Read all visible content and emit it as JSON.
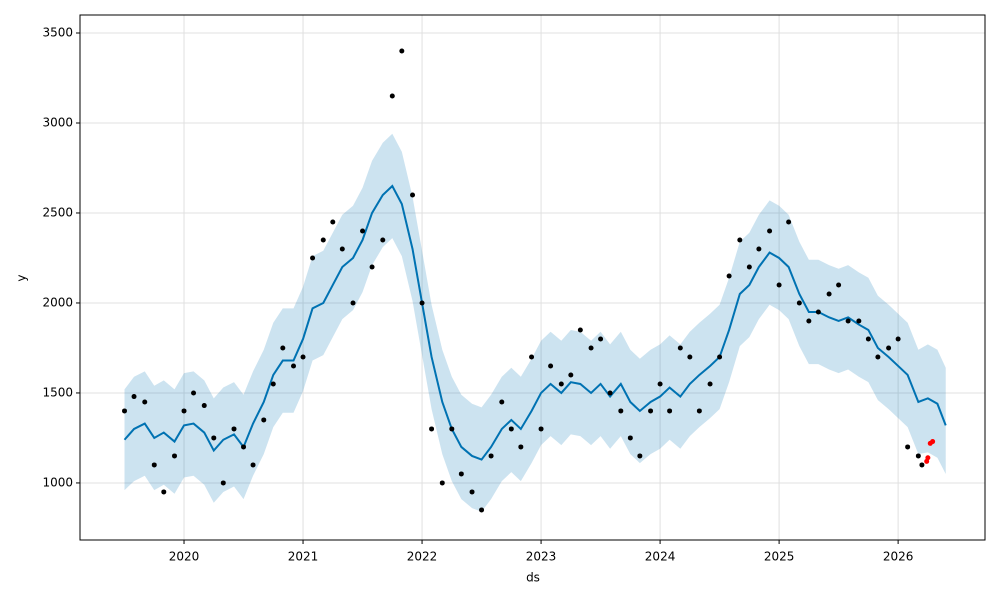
{
  "chart_data": {
    "type": "forecast",
    "x_label": "ds",
    "y_label": "y",
    "xlim": [
      2019.126,
      2026.73
    ],
    "xticks": [
      2020,
      2021,
      2022,
      2023,
      2024,
      2025,
      2026
    ],
    "ylim": [
      683,
      3600
    ],
    "yticks": [
      1000,
      1500,
      2000,
      2500,
      3000,
      3500
    ],
    "grid": true,
    "series": [
      {
        "type": "band",
        "color": "#0072B2",
        "x": [
          2019.5,
          2019.58,
          2019.67,
          2019.75,
          2019.83,
          2019.92,
          2020.0,
          2020.08,
          2020.17,
          2020.25,
          2020.33,
          2020.42,
          2020.5,
          2020.58,
          2020.67,
          2020.75,
          2020.83,
          2020.92,
          2021.0,
          2021.08,
          2021.17,
          2021.25,
          2021.33,
          2021.42,
          2021.5,
          2021.58,
          2021.67,
          2021.75,
          2021.83,
          2021.92,
          2022.0,
          2022.08,
          2022.17,
          2022.25,
          2022.33,
          2022.42,
          2022.5,
          2022.58,
          2022.67,
          2022.75,
          2022.83,
          2022.92,
          2023.0,
          2023.08,
          2023.17,
          2023.25,
          2023.33,
          2023.42,
          2023.5,
          2023.58,
          2023.67,
          2023.75,
          2023.83,
          2023.92,
          2024.0,
          2024.08,
          2024.17,
          2024.25,
          2024.33,
          2024.42,
          2024.5,
          2024.58,
          2024.67,
          2024.75,
          2024.83,
          2024.92,
          2025.0,
          2025.08,
          2025.17,
          2025.25,
          2025.33,
          2025.42,
          2025.5,
          2025.58,
          2025.67,
          2025.75,
          2025.83,
          2025.92,
          2026.0,
          2026.08,
          2026.17,
          2026.25,
          2026.33,
          2026.4
        ],
        "upper": [
          1520,
          1590,
          1620,
          1540,
          1570,
          1520,
          1610,
          1620,
          1570,
          1470,
          1530,
          1560,
          1490,
          1620,
          1740,
          1890,
          1970,
          1970,
          2090,
          2260,
          2290,
          2390,
          2490,
          2540,
          2640,
          2790,
          2890,
          2940,
          2840,
          2590,
          2290,
          1990,
          1740,
          1590,
          1490,
          1440,
          1420,
          1490,
          1590,
          1640,
          1590,
          1690,
          1790,
          1840,
          1790,
          1850,
          1840,
          1790,
          1840,
          1770,
          1840,
          1740,
          1690,
          1740,
          1770,
          1820,
          1770,
          1840,
          1890,
          1940,
          1990,
          2140,
          2340,
          2390,
          2490,
          2570,
          2540,
          2490,
          2340,
          2240,
          2240,
          2210,
          2190,
          2210,
          2170,
          2140,
          2040,
          1990,
          1940,
          1890,
          1740,
          1770,
          1740,
          1640
        ],
        "lower": [
          960,
          1010,
          1040,
          960,
          990,
          940,
          1030,
          1040,
          990,
          890,
          950,
          980,
          910,
          1040,
          1160,
          1310,
          1390,
          1390,
          1510,
          1680,
          1710,
          1810,
          1910,
          1960,
          2060,
          2210,
          2310,
          2360,
          2260,
          2010,
          1710,
          1410,
          1160,
          1010,
          910,
          860,
          840,
          910,
          1010,
          1060,
          1010,
          1110,
          1210,
          1260,
          1210,
          1270,
          1260,
          1210,
          1260,
          1190,
          1260,
          1160,
          1110,
          1160,
          1190,
          1240,
          1190,
          1260,
          1310,
          1360,
          1410,
          1560,
          1760,
          1810,
          1910,
          1990,
          1960,
          1910,
          1760,
          1660,
          1660,
          1630,
          1610,
          1630,
          1590,
          1560,
          1460,
          1410,
          1360,
          1310,
          1160,
          1170,
          1140,
          1050
        ]
      },
      {
        "type": "line",
        "color": "#0072B2",
        "x": [
          2019.5,
          2019.58,
          2019.67,
          2019.75,
          2019.83,
          2019.92,
          2020.0,
          2020.08,
          2020.17,
          2020.25,
          2020.33,
          2020.42,
          2020.5,
          2020.58,
          2020.67,
          2020.75,
          2020.83,
          2020.92,
          2021.0,
          2021.08,
          2021.17,
          2021.25,
          2021.33,
          2021.42,
          2021.5,
          2021.58,
          2021.67,
          2021.75,
          2021.83,
          2021.92,
          2022.0,
          2022.08,
          2022.17,
          2022.25,
          2022.33,
          2022.42,
          2022.5,
          2022.58,
          2022.67,
          2022.75,
          2022.83,
          2022.92,
          2023.0,
          2023.08,
          2023.17,
          2023.25,
          2023.33,
          2023.42,
          2023.5,
          2023.58,
          2023.67,
          2023.75,
          2023.83,
          2023.92,
          2024.0,
          2024.08,
          2024.17,
          2024.25,
          2024.33,
          2024.42,
          2024.5,
          2024.58,
          2024.67,
          2024.75,
          2024.83,
          2024.92,
          2025.0,
          2025.08,
          2025.17,
          2025.25,
          2025.33,
          2025.42,
          2025.5,
          2025.58,
          2025.67,
          2025.75,
          2025.83,
          2025.92,
          2026.0,
          2026.08,
          2026.17,
          2026.25,
          2026.33,
          2026.4
        ],
        "values": [
          1240,
          1300,
          1330,
          1250,
          1280,
          1230,
          1320,
          1330,
          1280,
          1180,
          1240,
          1270,
          1200,
          1330,
          1450,
          1600,
          1680,
          1680,
          1800,
          1970,
          2000,
          2100,
          2200,
          2250,
          2350,
          2500,
          2600,
          2650,
          2550,
          2300,
          2000,
          1700,
          1450,
          1300,
          1200,
          1150,
          1130,
          1200,
          1300,
          1350,
          1300,
          1400,
          1500,
          1550,
          1500,
          1560,
          1550,
          1500,
          1550,
          1480,
          1550,
          1450,
          1400,
          1450,
          1480,
          1530,
          1480,
          1550,
          1600,
          1650,
          1700,
          1850,
          2050,
          2100,
          2200,
          2280,
          2250,
          2200,
          2050,
          1950,
          1950,
          1920,
          1900,
          1920,
          1880,
          1850,
          1750,
          1700,
          1650,
          1600,
          1450,
          1470,
          1440,
          1320
        ]
      },
      {
        "type": "scatter",
        "color": "#000000",
        "x": [
          2019.5,
          2019.58,
          2019.67,
          2019.75,
          2019.83,
          2019.92,
          2020.0,
          2020.08,
          2020.17,
          2020.25,
          2020.33,
          2020.42,
          2020.5,
          2020.58,
          2020.67,
          2020.75,
          2020.83,
          2020.92,
          2021.0,
          2021.08,
          2021.17,
          2021.25,
          2021.33,
          2021.42,
          2021.5,
          2021.58,
          2021.67,
          2021.75,
          2021.83,
          2021.92,
          2022.0,
          2022.08,
          2022.17,
          2022.25,
          2022.33,
          2022.42,
          2022.5,
          2022.58,
          2022.67,
          2022.75,
          2022.83,
          2022.92,
          2023.0,
          2023.08,
          2023.17,
          2023.25,
          2023.33,
          2023.42,
          2023.5,
          2023.58,
          2023.67,
          2023.75,
          2023.83,
          2023.92,
          2024.0,
          2024.08,
          2024.17,
          2024.25,
          2024.33,
          2024.42,
          2024.5,
          2024.58,
          2024.67,
          2024.75,
          2024.83,
          2024.92,
          2025.0,
          2025.08,
          2025.17,
          2025.25,
          2025.33,
          2025.42,
          2025.5,
          2025.58,
          2025.67,
          2025.75,
          2025.83,
          2025.92,
          2026.0,
          2026.08,
          2026.17,
          2026.2
        ],
        "values": [
          1400,
          1480,
          1450,
          1100,
          950,
          1150,
          1400,
          1500,
          1430,
          1250,
          1000,
          1300,
          1200,
          1100,
          1350,
          1550,
          1750,
          1650,
          1700,
          2250,
          2350,
          2450,
          2300,
          2000,
          2400,
          2200,
          2350,
          3150,
          3400,
          2600,
          2000,
          1300,
          1000,
          1300,
          1050,
          950,
          850,
          1150,
          1450,
          1300,
          1200,
          1700,
          1300,
          1650,
          1550,
          1600,
          1850,
          1750,
          1800,
          1500,
          1400,
          1250,
          1150,
          1400,
          1550,
          1400,
          1750,
          1700,
          1400,
          1550,
          1700,
          2150,
          2350,
          2200,
          2300,
          2400,
          2100,
          2450,
          2000,
          1900,
          1950,
          2050,
          2100,
          1900,
          1900,
          1800,
          1700,
          1750,
          1800,
          1200,
          1150,
          1100
        ]
      },
      {
        "type": "scatter",
        "color": "#ff0000",
        "x": [
          2026.24,
          2026.25,
          2026.27,
          2026.29
        ],
        "values": [
          1120,
          1140,
          1220,
          1230
        ]
      }
    ]
  }
}
